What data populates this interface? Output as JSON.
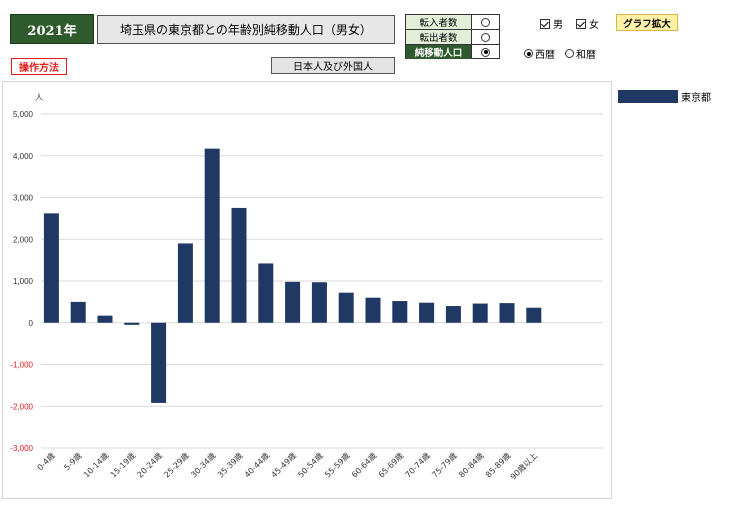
{
  "header": {
    "year_label": "2021年",
    "title": "埼玉県の東京都との年齢別純移動人口（男女）",
    "ops_label": "操作方法",
    "nationality_label": "日本人及び外国人",
    "graph_zoom_label": "グラフ拡大"
  },
  "metrics": [
    {
      "label": "転入者数",
      "selected": false
    },
    {
      "label": "転出者数",
      "selected": false
    },
    {
      "label": "純移動人口",
      "selected": true
    }
  ],
  "gender": {
    "male_label": "男",
    "male_checked": true,
    "female_label": "女",
    "female_checked": true
  },
  "calendar": {
    "western_label": "西暦",
    "western_selected": true,
    "japanese_label": "和暦",
    "japanese_selected": false
  },
  "colors": {
    "bar": "#1f3864",
    "negative_tick": "#e31b1b",
    "grid": "#d9d9d9"
  },
  "chart_data": {
    "type": "bar",
    "ylabel": "人",
    "ylim": [
      -3000,
      5000
    ],
    "yticks": [
      5000,
      4000,
      3000,
      2000,
      1000,
      0,
      -1000,
      -2000,
      -3000
    ],
    "ytick_labels": [
      "5,000",
      "4,000",
      "3,000",
      "2,000",
      "1,000",
      "0",
      "-1,000",
      "-2,000",
      "-3,000"
    ],
    "grid": true,
    "legend_position": "right",
    "categories": [
      "0-4歳",
      "5-9歳",
      "10-14歳",
      "15-19歳",
      "20-24歳",
      "25-29歳",
      "30-34歳",
      "35-39歳",
      "40-44歳",
      "45-49歳",
      "50-54歳",
      "55-59歳",
      "60-64歳",
      "65-69歳",
      "70-74歳",
      "75-79歳",
      "80-84歳",
      "85-89歳",
      "90歳以上"
    ],
    "series": [
      {
        "name": "東京都",
        "values": [
          2620,
          500,
          170,
          -50,
          -1920,
          1900,
          4170,
          2750,
          1420,
          980,
          970,
          720,
          600,
          520,
          480,
          400,
          460,
          470,
          360
        ]
      }
    ]
  }
}
